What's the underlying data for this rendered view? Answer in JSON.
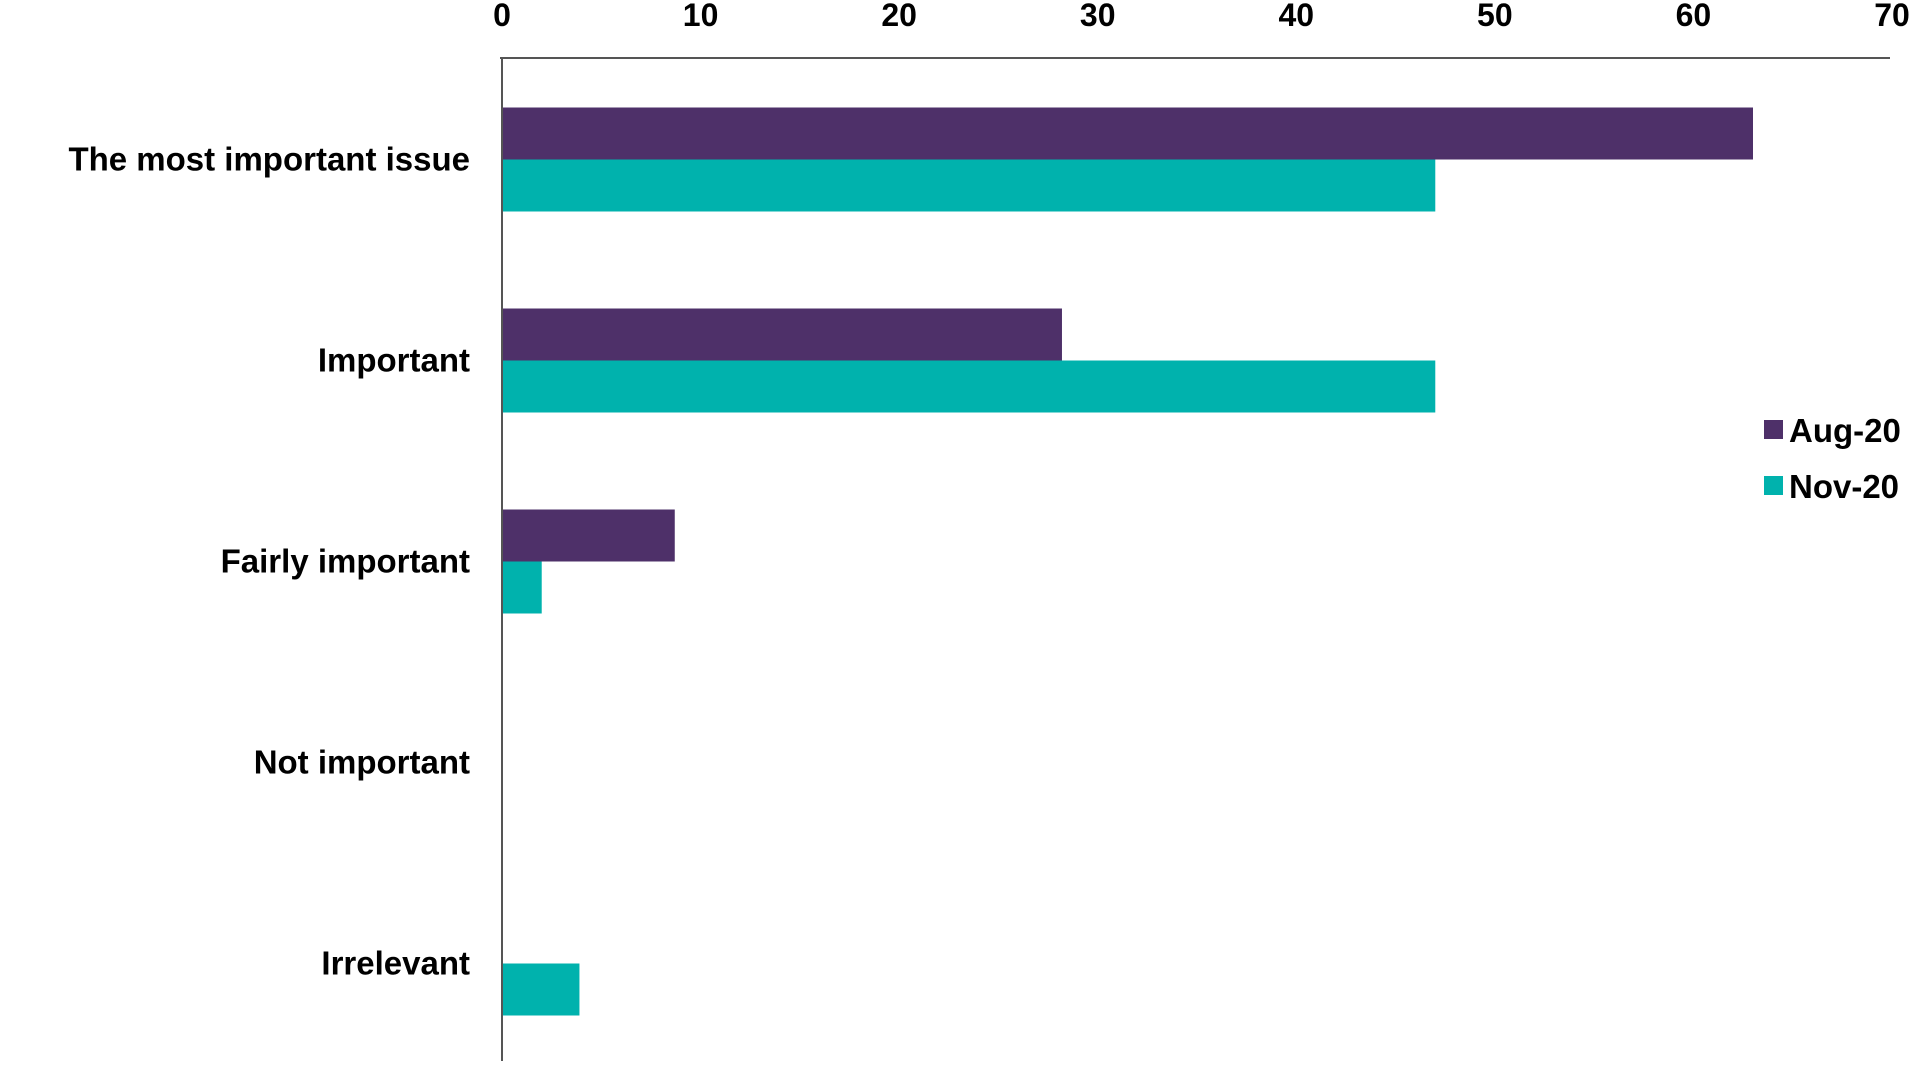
{
  "chart_data": {
    "type": "bar",
    "orientation": "horizontal",
    "categories": [
      "The most important issue",
      "Important",
      "Fairly important",
      "Not important",
      "Irrelevant"
    ],
    "series": [
      {
        "name": "Aug-20",
        "color": "#4e3069",
        "values": [
          63,
          28.2,
          8.7,
          0,
          0
        ]
      },
      {
        "name": "Nov-20",
        "color": "#00b2ad",
        "values": [
          47,
          47,
          2,
          0,
          3.9
        ]
      }
    ],
    "xlim": [
      0,
      70
    ],
    "xticks": [
      0,
      10,
      20,
      30,
      40,
      50,
      60,
      70
    ],
    "x_axis_position": "top",
    "grid": false,
    "legend_position": "right",
    "title": "",
    "xlabel": "",
    "ylabel": ""
  }
}
